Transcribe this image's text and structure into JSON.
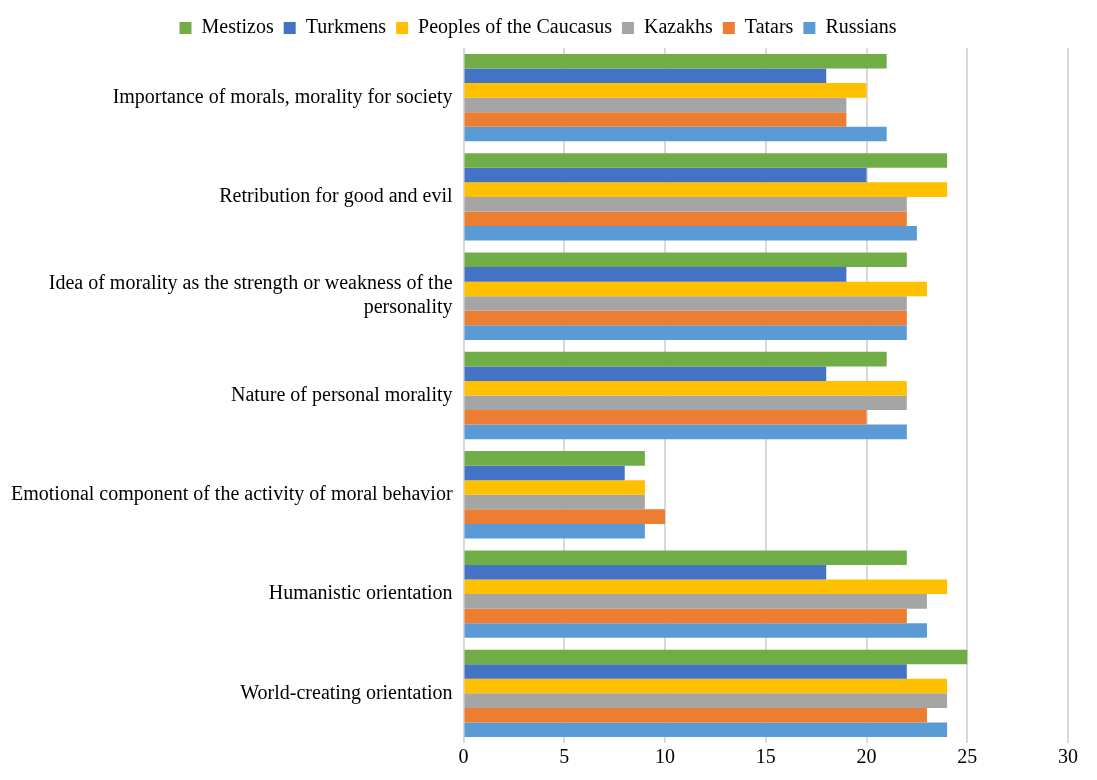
{
  "chart_data": {
    "type": "bar",
    "orientation": "horizontal",
    "categories": [
      "Importance of morals, morality for society",
      "Retribution for good and evil",
      "Idea of morality as the strength or weakness of the personality",
      "Nature of personal morality",
      "Emotional component of the activity of moral behavior",
      "Humanistic orientation",
      "World-creating orientation"
    ],
    "series": [
      {
        "name": "Mestizos",
        "color": "#70ad47",
        "values": [
          21,
          24,
          22,
          21,
          9,
          22,
          25
        ]
      },
      {
        "name": "Turkmens",
        "color": "#4472c4",
        "values": [
          18,
          20,
          19,
          18,
          8,
          18,
          22
        ]
      },
      {
        "name": "Peoples of the Caucasus",
        "color": "#ffc000",
        "values": [
          20,
          24,
          23,
          22,
          9,
          24,
          24
        ]
      },
      {
        "name": "Kazakhs",
        "color": "#a5a5a5",
        "values": [
          19,
          22,
          22,
          22,
          9,
          23,
          24
        ]
      },
      {
        "name": "Tatars",
        "color": "#ed7d31",
        "values": [
          19,
          22,
          22,
          20,
          10,
          22,
          23
        ]
      },
      {
        "name": "Russians",
        "color": "#5b9bd5",
        "values": [
          21,
          22.5,
          22,
          22,
          9,
          23,
          24
        ]
      }
    ],
    "xlim": [
      0,
      30
    ],
    "xticks": [
      0,
      5,
      10,
      15,
      20,
      25,
      30
    ],
    "grid": "x",
    "legend": "top"
  }
}
